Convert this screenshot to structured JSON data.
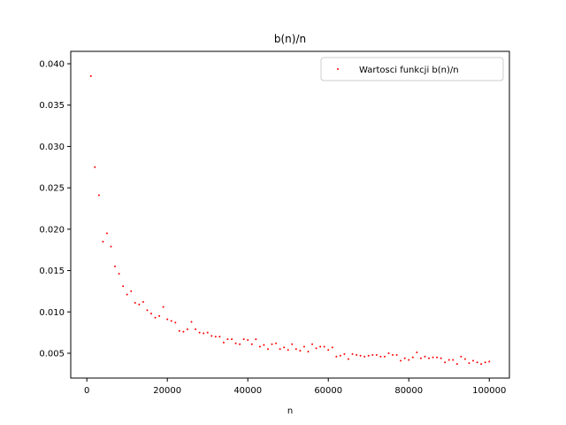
{
  "chart_data": {
    "type": "scatter",
    "title": "b(n)/n",
    "xlabel": "n",
    "ylabel": "",
    "xlim": [
      -4000,
      105000
    ],
    "ylim": [
      0.002,
      0.0415
    ],
    "xticks": [
      0,
      20000,
      40000,
      60000,
      80000,
      100000
    ],
    "yticks": [
      0.005,
      0.01,
      0.015,
      0.02,
      0.025,
      0.03,
      0.035,
      0.04
    ],
    "ytick_labels": [
      "0.005",
      "0.010",
      "0.015",
      "0.020",
      "0.025",
      "0.030",
      "0.035",
      "0.040"
    ],
    "grid": false,
    "legend_position": "top-right",
    "marker_color": "#ff0000",
    "series": [
      {
        "name": "Wartosci funkcji b(n)/n",
        "x": [
          1000,
          2000,
          3000,
          4000,
          5000,
          6000,
          7000,
          8000,
          9000,
          10000,
          11000,
          12000,
          13000,
          14000,
          15000,
          16000,
          17000,
          18000,
          19000,
          20000,
          21000,
          22000,
          23000,
          24000,
          25000,
          26000,
          27000,
          28000,
          29000,
          30000,
          31000,
          32000,
          33000,
          34000,
          35000,
          36000,
          37000,
          38000,
          39000,
          40000,
          41000,
          42000,
          43000,
          44000,
          45000,
          46000,
          47000,
          48000,
          49000,
          50000,
          51000,
          52000,
          53000,
          54000,
          55000,
          56000,
          57000,
          58000,
          59000,
          60000,
          61000,
          62000,
          63000,
          64000,
          65000,
          66000,
          67000,
          68000,
          69000,
          70000,
          71000,
          72000,
          73000,
          74000,
          75000,
          76000,
          77000,
          78000,
          79000,
          80000,
          81000,
          82000,
          83000,
          84000,
          85000,
          86000,
          87000,
          88000,
          89000,
          90000,
          91000,
          92000,
          93000,
          94000,
          95000,
          96000,
          97000,
          98000,
          99000,
          100000
        ],
        "y": [
          0.0385,
          0.0275,
          0.0241,
          0.0185,
          0.0195,
          0.0179,
          0.0155,
          0.0146,
          0.0131,
          0.0121,
          0.0125,
          0.0111,
          0.0109,
          0.0112,
          0.0102,
          0.0098,
          0.0093,
          0.0095,
          0.0106,
          0.0091,
          0.0089,
          0.0087,
          0.0077,
          0.0076,
          0.0079,
          0.0088,
          0.0079,
          0.0075,
          0.0074,
          0.0075,
          0.0071,
          0.007,
          0.007,
          0.0063,
          0.0067,
          0.0067,
          0.0062,
          0.0061,
          0.0067,
          0.0066,
          0.0061,
          0.0067,
          0.0058,
          0.006,
          0.0055,
          0.0061,
          0.0062,
          0.0055,
          0.0057,
          0.0054,
          0.0061,
          0.0055,
          0.0053,
          0.0058,
          0.0052,
          0.0061,
          0.0056,
          0.0058,
          0.0058,
          0.0054,
          0.0057,
          0.0046,
          0.0047,
          0.0049,
          0.0043,
          0.0049,
          0.0048,
          0.0047,
          0.0046,
          0.0047,
          0.0048,
          0.0048,
          0.0046,
          0.0046,
          0.005,
          0.0048,
          0.0048,
          0.0041,
          0.0044,
          0.0042,
          0.0045,
          0.0051,
          0.0044,
          0.0046,
          0.0044,
          0.0045,
          0.0045,
          0.0044,
          0.0039,
          0.0042,
          0.0042,
          0.0037,
          0.0046,
          0.0043,
          0.0038,
          0.0041,
          0.0039,
          0.0037,
          0.0039,
          0.004
        ]
      }
    ]
  }
}
